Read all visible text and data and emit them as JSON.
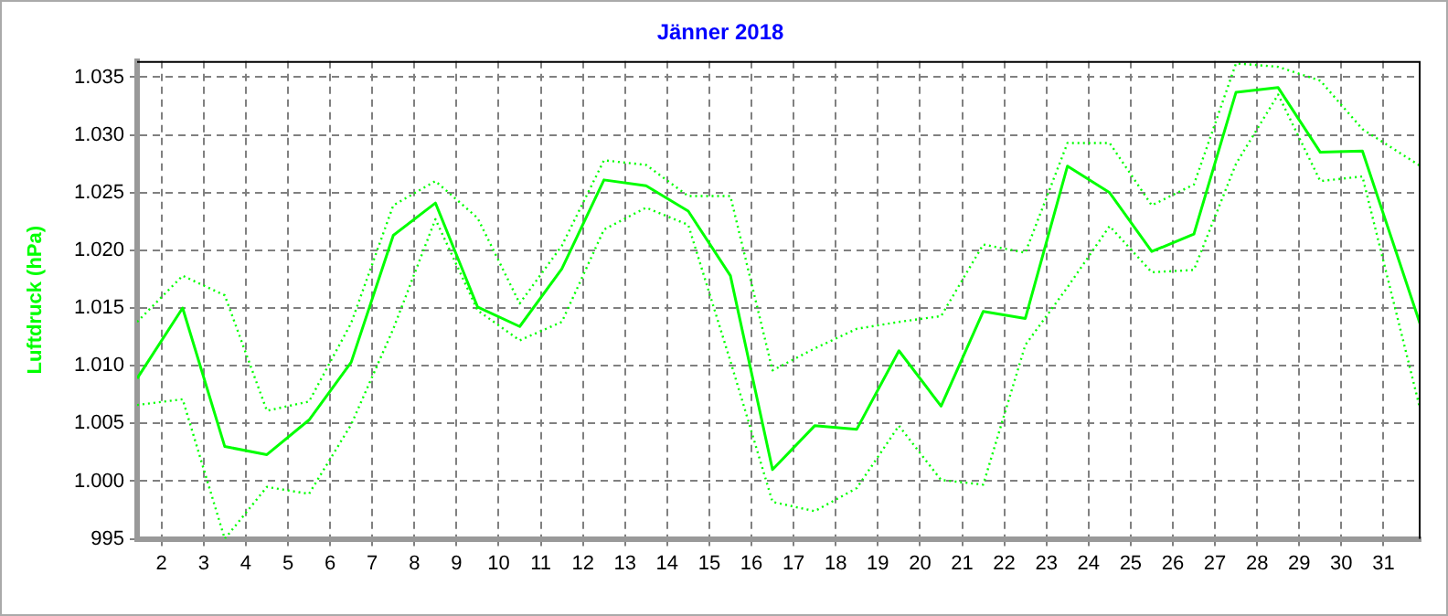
{
  "chart_data": {
    "type": "line",
    "title": "Jänner 2018",
    "ylabel": "Luftdruck (hPa)",
    "x": [
      1.42,
      2.5,
      3.5,
      4.5,
      5.5,
      6.5,
      7.5,
      8.5,
      9.5,
      10.5,
      11.5,
      12.5,
      13.5,
      14.5,
      15.5,
      16.5,
      17.5,
      18.5,
      19.5,
      20.5,
      21.5,
      22.5,
      23.5,
      24.5,
      25.5,
      26.5,
      27.5,
      28.5,
      29.5,
      30.5,
      31.88
    ],
    "xlim": [
      1.42,
      31.88
    ],
    "xticks": [
      2,
      3,
      4,
      5,
      6,
      7,
      8,
      9,
      10,
      11,
      12,
      13,
      14,
      15,
      16,
      17,
      18,
      19,
      20,
      21,
      22,
      23,
      24,
      25,
      26,
      27,
      28,
      29,
      30,
      31
    ],
    "ylim": [
      995,
      1036.4
    ],
    "yticks": [
      995,
      {
        "value": 1000,
        "label": "1.000"
      },
      {
        "value": 1005,
        "label": "1.005"
      },
      {
        "value": 1010,
        "label": "1.010"
      },
      {
        "value": 1015,
        "label": "1.015"
      },
      {
        "value": 1020,
        "label": "1.020"
      },
      {
        "value": 1025,
        "label": "1.025"
      },
      {
        "value": 1030,
        "label": "1.030"
      },
      {
        "value": 1035,
        "label": "1.035"
      }
    ],
    "grid": true,
    "legend": false,
    "marker": "none",
    "series": [
      {
        "color": "#00ff00",
        "line_style": "dotted",
        "values": [
          1013.8,
          1017.8,
          1016.1,
          1006.1,
          1006.9,
          1013.7,
          1023.9,
          1026.0,
          1022.8,
          1015.4,
          1020.4,
          1027.8,
          1027.4,
          1024.7,
          1024.7,
          1009.6,
          1011.5,
          1013.2,
          1013.8,
          1014.3,
          1020.5,
          1019.8,
          1029.3,
          1029.3,
          1023.9,
          1025.7,
          1036.2,
          1035.9,
          1034.7,
          1030.5,
          1027.3
        ]
      },
      {
        "color": "#00ff00",
        "line_style": "solid",
        "values": [
          1008.9,
          1015.0,
          1003.0,
          1002.3,
          1005.3,
          1010.3,
          1021.3,
          1024.1,
          1015.1,
          1013.4,
          1018.4,
          1026.1,
          1025.6,
          1023.4,
          1017.8,
          1001.0,
          1004.8,
          1004.5,
          1011.3,
          1006.5,
          1014.7,
          1014.1,
          1027.3,
          1025.0,
          1019.9,
          1021.4,
          1033.7,
          1034.1,
          1028.5,
          1028.6,
          1013.5
        ]
      },
      {
        "color": "#00ff00",
        "line_style": "dotted",
        "values": [
          1006.6,
          1007.1,
          995.0,
          999.5,
          998.9,
          1004.9,
          1013.2,
          1022.7,
          1014.8,
          1012.2,
          1013.8,
          1021.8,
          1023.7,
          1022.2,
          1010.4,
          998.2,
          997.4,
          999.4,
          1004.8,
          1000.1,
          999.7,
          1011.8,
          1016.8,
          1022.1,
          1018.1,
          1018.3,
          1027.5,
          1033.5,
          1026.0,
          1026.4,
          1006.1
        ]
      }
    ]
  }
}
